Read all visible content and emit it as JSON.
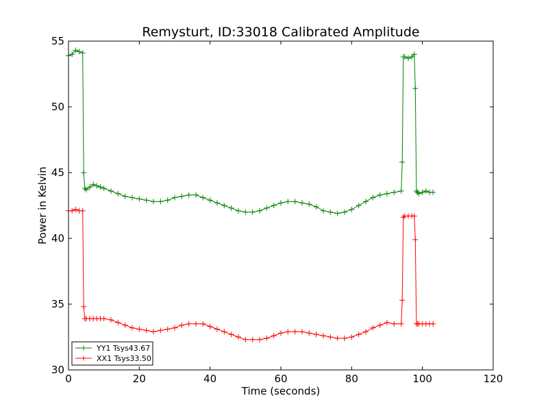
{
  "chart_data": {
    "type": "line",
    "title": "Remysturt, ID:33018 Calibrated Amplitude",
    "xlabel": "Time (seconds)",
    "ylabel": "Power in Kelvin",
    "xlim": [
      0,
      120
    ],
    "ylim": [
      30,
      55
    ],
    "xticks": [
      "0",
      "20",
      "40",
      "60",
      "80",
      "100",
      "120"
    ],
    "yticks": [
      "30",
      "35",
      "40",
      "45",
      "50",
      "55"
    ],
    "grid": false,
    "legend_position": "lower-left",
    "marker": "plus",
    "series": [
      {
        "name": "YY1 Tsys43.67",
        "color": "#008000",
        "x": [
          0,
          1,
          2,
          3,
          4,
          4.3,
          4.6,
          5,
          6,
          7,
          8,
          9,
          10,
          12,
          14,
          16,
          18,
          20,
          22,
          24,
          26,
          28,
          30,
          32,
          34,
          36,
          38,
          40,
          42,
          44,
          46,
          48,
          50,
          52,
          54,
          56,
          58,
          60,
          62,
          64,
          66,
          68,
          70,
          72,
          74,
          76,
          78,
          80,
          82,
          84,
          86,
          88,
          90,
          92,
          94,
          94.3,
          94.6,
          95,
          96,
          97,
          97.7,
          98,
          98.3,
          98.6,
          99,
          100,
          101,
          102,
          103
        ],
        "y": [
          53.9,
          54.0,
          54.3,
          54.2,
          54.1,
          45.0,
          43.8,
          43.7,
          43.9,
          44.1,
          44.0,
          43.9,
          43.8,
          43.6,
          43.4,
          43.2,
          43.1,
          43.0,
          42.9,
          42.8,
          42.8,
          42.9,
          43.1,
          43.2,
          43.3,
          43.3,
          43.1,
          42.9,
          42.7,
          42.5,
          42.3,
          42.1,
          42.0,
          42.0,
          42.1,
          42.3,
          42.5,
          42.7,
          42.8,
          42.8,
          42.7,
          42.6,
          42.4,
          42.1,
          42.0,
          41.9,
          42.0,
          42.2,
          42.5,
          42.8,
          43.1,
          43.3,
          43.4,
          43.5,
          43.6,
          45.8,
          53.8,
          53.8,
          53.7,
          53.8,
          54.0,
          51.4,
          43.6,
          43.5,
          43.4,
          43.5,
          43.6,
          43.5,
          43.5
        ]
      },
      {
        "name": "XX1 Tsys33.50",
        "color": "#ff0000",
        "x": [
          0,
          1,
          2,
          3,
          4,
          4.3,
          4.6,
          5,
          6,
          7,
          8,
          9,
          10,
          12,
          14,
          16,
          18,
          20,
          22,
          24,
          26,
          28,
          30,
          32,
          34,
          36,
          38,
          40,
          42,
          44,
          46,
          48,
          50,
          52,
          54,
          56,
          58,
          60,
          62,
          64,
          66,
          68,
          70,
          72,
          74,
          76,
          78,
          80,
          82,
          84,
          86,
          88,
          90,
          92,
          94,
          94.3,
          94.6,
          95,
          96,
          97,
          97.7,
          98,
          98.3,
          98.6,
          99,
          100,
          101,
          102,
          103
        ],
        "y": [
          42.1,
          42.1,
          42.2,
          42.1,
          42.1,
          34.8,
          33.9,
          33.9,
          33.9,
          33.9,
          33.9,
          33.9,
          33.9,
          33.8,
          33.6,
          33.4,
          33.2,
          33.1,
          33.0,
          32.9,
          33.0,
          33.1,
          33.2,
          33.4,
          33.5,
          33.5,
          33.5,
          33.3,
          33.1,
          32.9,
          32.7,
          32.5,
          32.3,
          32.3,
          32.3,
          32.4,
          32.6,
          32.8,
          32.9,
          32.9,
          32.9,
          32.8,
          32.7,
          32.6,
          32.5,
          32.4,
          32.4,
          32.5,
          32.7,
          32.9,
          33.2,
          33.4,
          33.6,
          33.5,
          33.5,
          35.3,
          41.6,
          41.7,
          41.7,
          41.7,
          41.7,
          39.9,
          33.5,
          33.5,
          33.5,
          33.5,
          33.5,
          33.5,
          33.5
        ]
      }
    ]
  }
}
